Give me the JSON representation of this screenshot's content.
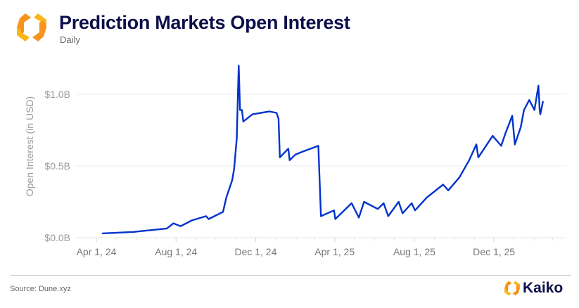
{
  "header": {
    "title": "Prediction Markets Open Interest",
    "subtitle": "Daily"
  },
  "footer": {
    "source": "Source: Dune.xyz",
    "brand": "Kaiko"
  },
  "colors": {
    "line": "#0033cc",
    "title": "#0d0f4a",
    "logo_orange": "#f7941d",
    "logo_yellow": "#fbb616"
  },
  "chart_data": {
    "type": "line",
    "title": "Prediction Markets Open Interest",
    "subtitle": "Daily",
    "xlabel": "",
    "ylabel": "Open Interest (in USD)",
    "ylim": [
      0,
      1.2
    ],
    "xlim": [
      "2024-03-01",
      "2026-03-10"
    ],
    "yticks": [
      {
        "value": 0,
        "label": "$0.0B"
      },
      {
        "value": 0.5,
        "label": "$0.5B"
      },
      {
        "value": 1.0,
        "label": "$1.0B"
      }
    ],
    "xticks": [
      {
        "date": "2024-04-01",
        "label": "Apr 1, 24"
      },
      {
        "date": "2024-08-01",
        "label": "Aug 1, 24"
      },
      {
        "date": "2024-12-01",
        "label": "Dec 1, 24"
      },
      {
        "date": "2025-04-01",
        "label": "Apr 1, 25"
      },
      {
        "date": "2025-08-01",
        "label": "Aug 1, 25"
      },
      {
        "date": "2025-12-01",
        "label": "Dec 1, 25"
      }
    ],
    "grid": true,
    "series": [
      {
        "name": "Open Interest (USD billions)",
        "x": [
          "2024-04-10",
          "2024-05-28",
          "2024-07-18",
          "2024-07-28",
          "2024-08-08",
          "2024-08-25",
          "2024-09-16",
          "2024-09-20",
          "2024-10-12",
          "2024-10-17",
          "2024-10-26",
          "2024-10-29",
          "2024-11-02",
          "2024-11-05",
          "2024-11-07",
          "2024-11-10",
          "2024-11-12",
          "2024-11-26",
          "2024-12-22",
          "2025-01-02",
          "2025-01-05",
          "2025-01-07",
          "2025-01-20",
          "2025-01-22",
          "2025-01-31",
          "2025-02-11",
          "2025-03-07",
          "2025-03-11",
          "2025-03-31",
          "2025-04-02",
          "2025-04-27",
          "2025-05-08",
          "2025-05-16",
          "2025-06-06",
          "2025-06-15",
          "2025-06-22",
          "2025-07-08",
          "2025-07-14",
          "2025-07-28",
          "2025-08-02",
          "2025-08-20",
          "2025-09-14",
          "2025-09-22",
          "2025-10-09",
          "2025-10-24",
          "2025-11-04",
          "2025-11-07",
          "2025-11-29",
          "2025-12-12",
          "2025-12-18",
          "2025-12-29",
          "2026-01-02",
          "2026-01-11",
          "2026-01-16",
          "2026-01-24",
          "2026-02-01",
          "2026-02-07",
          "2026-02-09",
          "2026-02-10",
          "2026-02-14"
        ],
        "values": [
          0.03,
          0.04,
          0.064,
          0.1,
          0.08,
          0.12,
          0.15,
          0.13,
          0.18,
          0.28,
          0.4,
          0.48,
          0.69,
          1.2,
          0.89,
          0.89,
          0.81,
          0.86,
          0.88,
          0.87,
          0.83,
          0.56,
          0.62,
          0.54,
          0.58,
          0.6,
          0.64,
          0.15,
          0.19,
          0.13,
          0.24,
          0.14,
          0.25,
          0.2,
          0.24,
          0.15,
          0.25,
          0.17,
          0.24,
          0.19,
          0.28,
          0.37,
          0.33,
          0.42,
          0.54,
          0.65,
          0.56,
          0.71,
          0.64,
          0.72,
          0.85,
          0.65,
          0.77,
          0.89,
          0.96,
          0.89,
          1.06,
          0.89,
          0.86,
          0.95
        ]
      }
    ]
  }
}
